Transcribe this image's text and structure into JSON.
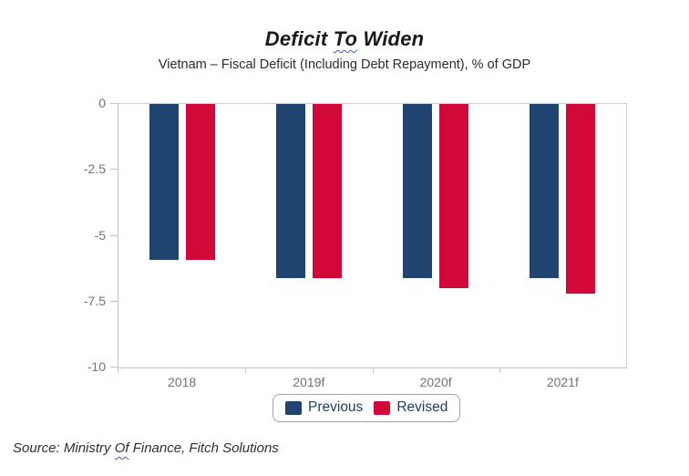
{
  "heading": {
    "title_prefix": "Deficit ",
    "title_misspelled_word": "To",
    "title_suffix": " Widen",
    "subtitle": "Vietnam – Fiscal Deficit (Including Debt Repayment), % of GDP"
  },
  "source_note": {
    "prefix": "Source: Ministry ",
    "misspelled_word": "Of",
    "suffix": " Finance, Fitch Solutions"
  },
  "chart_data": {
    "type": "bar",
    "title": "Deficit To Widen",
    "subtitle": "Vietnam – Fiscal Deficit (Including Debt Repayment), % of GDP",
    "categories": [
      "2018",
      "2019f",
      "2020f",
      "2021f"
    ],
    "series": [
      {
        "name": "Previous",
        "color": "#1F4470",
        "values": [
          -5.9,
          -6.6,
          -6.6,
          -6.6
        ]
      },
      {
        "name": "Revised",
        "color": "#D20838",
        "values": [
          -5.9,
          -6.6,
          -7.0,
          -7.2
        ]
      }
    ],
    "xlabel": "",
    "ylabel": "% of GDP",
    "ylim": [
      -10,
      0
    ],
    "yticks": [
      0,
      -2.5,
      -5,
      -7.5,
      -10
    ],
    "ytick_labels": [
      "0",
      "-2.5",
      "-5",
      "-7.5",
      "-10"
    ],
    "grid": false,
    "legend_position": "bottom-center",
    "bars_hang_from_zero": true
  },
  "colors": {
    "axis_line": "#b7c6d4",
    "frame_line": "#cdd3d9",
    "tick_label": "#6f7377",
    "legend_text": "#1e3a5f",
    "legend_border": "#9fa4aa",
    "spellcheck_squiggle": "#3b5bd0",
    "series_previous": "#1F4470",
    "series_revised": "#D20838"
  }
}
